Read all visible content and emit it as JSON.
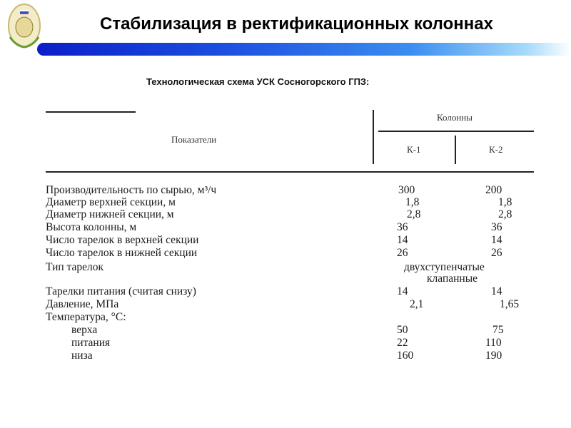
{
  "slide": {
    "title": "Стабилизация в ректификационных колоннах",
    "subtitle": "Технологическая схема УСК Сосногорского ГПЗ:",
    "accent_color": "#1b4fe0"
  },
  "table": {
    "header": {
      "indicators": "Показатели",
      "columns_group": "Колонны",
      "k1": "К-1",
      "k2": "К-2"
    },
    "rows": [
      {
        "label": "Производительность по сырью, м³/ч",
        "k1": "300",
        "k2": "200"
      },
      {
        "label": "Диаметр верхней секции, м",
        "k1": "1,8",
        "k2": "1,8"
      },
      {
        "label": "Диаметр нижней секции, м",
        "k1": "2,8",
        "k2": "2,8"
      },
      {
        "label": "Высота колонны, м",
        "k1": "36",
        "k2": "36"
      },
      {
        "label": "Число тарелок в верхней секции",
        "k1": "14",
        "k2": "14"
      },
      {
        "label": "Число тарелок в нижней секции",
        "k1": "26",
        "k2": "26"
      },
      {
        "label": "Тип тарелок",
        "k1": "",
        "k2": "",
        "span": "двухступенчатые"
      },
      {
        "label": "",
        "k1": "",
        "k2": "",
        "span": "клапанные"
      },
      {
        "label": "Тарелки питания (считая снизу)",
        "k1": "14",
        "k2": "14"
      },
      {
        "label": "Давление, МПа",
        "k1": "2,1",
        "k2": "1,65"
      },
      {
        "label": "Температура, °С:",
        "k1": "",
        "k2": ""
      },
      {
        "label": "верха",
        "k1": "50",
        "k2": "75"
      },
      {
        "label": "питания",
        "k1": "22",
        "k2": "110"
      },
      {
        "label": "низа",
        "k1": "160",
        "k2": "190"
      }
    ]
  }
}
